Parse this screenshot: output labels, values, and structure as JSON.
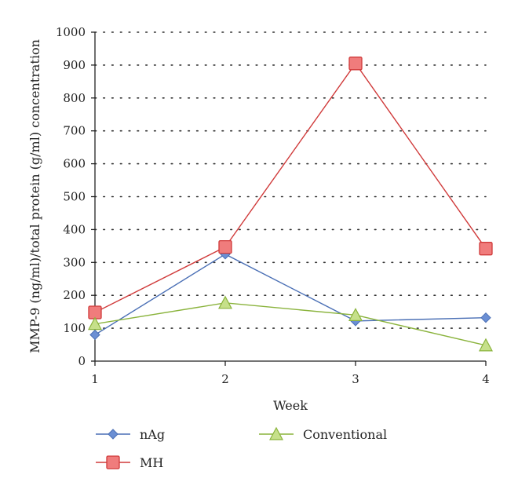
{
  "chart_data": {
    "type": "line",
    "title": "",
    "xlabel": "Week",
    "ylabel": "MMP-9 (ng/ml)/total protein (g/ml) concentration",
    "x": [
      1,
      2,
      3,
      4
    ],
    "xlim": [
      1,
      4
    ],
    "ylim": [
      0,
      1000
    ],
    "yticks": [
      0,
      100,
      200,
      300,
      400,
      500,
      600,
      700,
      800,
      900,
      1000
    ],
    "grid": "horizontal-dotted",
    "legend": "bottom",
    "series": [
      {
        "name": "nAg",
        "values": [
          80,
          325,
          122,
          132
        ],
        "color": "#4a6fb5",
        "fill": "#6b8fd4",
        "marker": "diamond"
      },
      {
        "name": "MH",
        "values": [
          148,
          347,
          905,
          342
        ],
        "color": "#d03a3a",
        "fill": "#f07c7c",
        "marker": "square"
      },
      {
        "name": "Conventional",
        "values": [
          113,
          177,
          140,
          48
        ],
        "color": "#8ab33c",
        "fill": "#c6e08a",
        "marker": "triangle"
      }
    ]
  }
}
